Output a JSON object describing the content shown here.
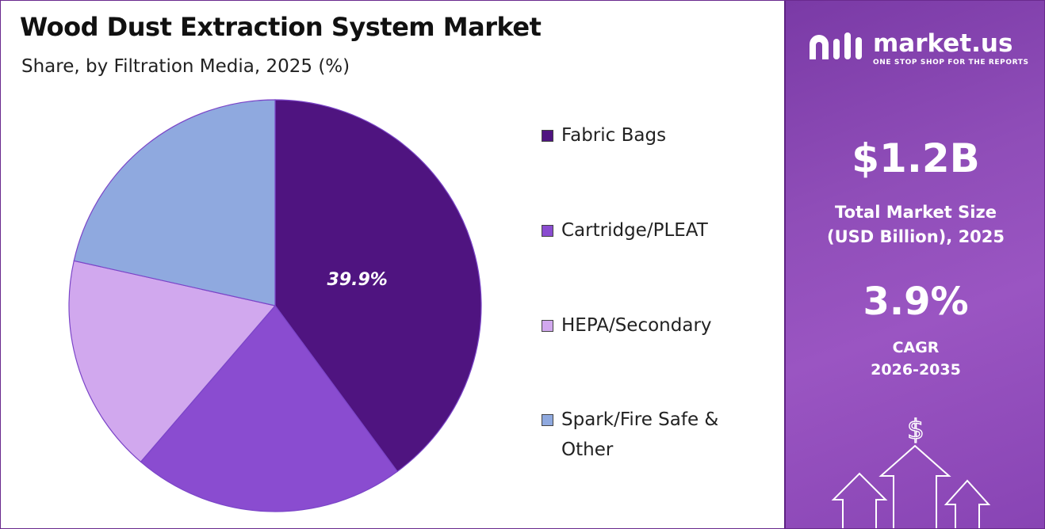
{
  "chart_data": {
    "type": "pie",
    "title": "Wood Dust Extraction System Market",
    "subtitle": "Share, by Filtration Media, 2025 (%)",
    "categories": [
      "Fabric Bags",
      "Cartridge/PLEAT",
      "HEPA/Secondary",
      "Spark/Fire Safe & Other"
    ],
    "values": [
      39.9,
      21.4,
      17.2,
      21.5
    ],
    "colors": [
      "#4f1480",
      "#8a4cd0",
      "#d1a8ee",
      "#8fa9df"
    ],
    "data_labels": [
      "39.9%",
      "",
      "",
      ""
    ],
    "legend_position": "right"
  },
  "sidebar": {
    "logo_name": "market.us",
    "logo_tagline": "ONE STOP SHOP FOR THE REPORTS",
    "market_size_value": "$1.2B",
    "market_size_label_1": "Total Market Size",
    "market_size_label_2": "(USD Billion), 2025",
    "cagr_value": "3.9%",
    "cagr_label_1": "CAGR",
    "cagr_label_2": "2026-2035",
    "icons": [
      "market-us-logo-icon",
      "dollar-sign-icon",
      "up-arrow-icon"
    ]
  }
}
